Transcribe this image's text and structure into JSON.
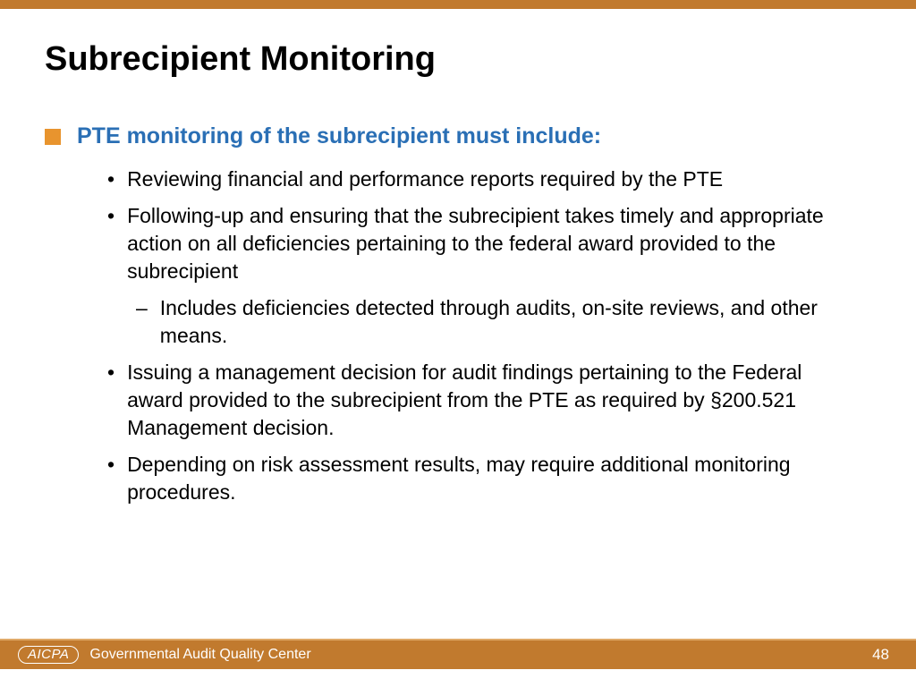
{
  "colors": {
    "top_bar": "#c17a2e",
    "footer_bar": "#c17a2e",
    "footer_border": "#e0a968",
    "square_bullet": "#e8942e",
    "heading_blue": "#2a6fb5",
    "text_black": "#000000",
    "footer_text": "#ffffff",
    "background": "#ffffff"
  },
  "title": "Subrecipient Monitoring",
  "heading": "PTE monitoring of the subrecipient must include:",
  "bullets": [
    {
      "text": "Reviewing financial and performance reports required by the PTE"
    },
    {
      "text": "Following-up and ensuring that the subrecipient takes timely and appropriate action on all deficiencies pertaining to the federal award provided to the subrecipient"
    },
    {
      "text": "Includes deficiencies detected through audits, on-site reviews, and other means.",
      "sub": true
    },
    {
      "text": "Issuing a management decision for audit findings pertaining to the Federal award provided to the subrecipient from the PTE as required by §200.521 Management decision."
    },
    {
      "text": "Depending on risk assessment results, may require additional monitoring procedures."
    }
  ],
  "footer": {
    "logo": "AICPA",
    "text": "Governmental Audit Quality Center",
    "page": "48"
  }
}
